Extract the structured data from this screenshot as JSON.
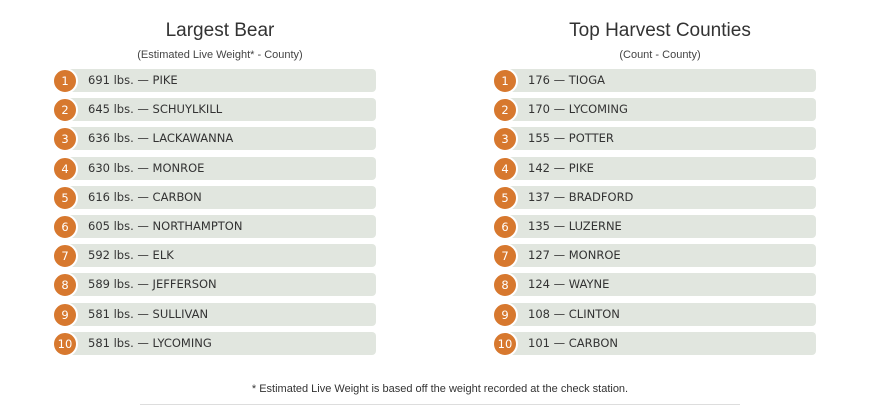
{
  "largest_bear": {
    "title": "Largest Bear",
    "subtitle": "(Estimated Live Weight* - County)",
    "items": [
      {
        "rank": "1",
        "text": "691 lbs. — PIKE"
      },
      {
        "rank": "2",
        "text": "645 lbs. — SCHUYLKILL"
      },
      {
        "rank": "3",
        "text": "636 lbs. — LACKAWANNA"
      },
      {
        "rank": "4",
        "text": "630 lbs. — MONROE"
      },
      {
        "rank": "5",
        "text": "616 lbs. — CARBON"
      },
      {
        "rank": "6",
        "text": "605 lbs. — NORTHAMPTON"
      },
      {
        "rank": "7",
        "text": "592 lbs. — ELK"
      },
      {
        "rank": "8",
        "text": "589 lbs. — JEFFERSON"
      },
      {
        "rank": "9",
        "text": "581 lbs. — SULLIVAN"
      },
      {
        "rank": "10",
        "text": "581 lbs. — LYCOMING"
      }
    ]
  },
  "top_harvest": {
    "title": "Top Harvest Counties",
    "subtitle": "(Count - County)",
    "items": [
      {
        "rank": "1",
        "text": "176 — TIOGA"
      },
      {
        "rank": "2",
        "text": "170 — LYCOMING"
      },
      {
        "rank": "3",
        "text": "155 — POTTER"
      },
      {
        "rank": "4",
        "text": "142 — PIKE"
      },
      {
        "rank": "5",
        "text": "137 — BRADFORD"
      },
      {
        "rank": "6",
        "text": "135 — LUZERNE"
      },
      {
        "rank": "7",
        "text": "127 — MONROE"
      },
      {
        "rank": "8",
        "text": "124 — WAYNE"
      },
      {
        "rank": "9",
        "text": "108 — CLINTON"
      },
      {
        "rank": "10",
        "text": "101 — CARBON"
      }
    ]
  },
  "footnote": "* Estimated Live Weight is based off the weight recorded at the check station.",
  "colors": {
    "badge": "#d7782e",
    "bar": "#e1e6df"
  }
}
